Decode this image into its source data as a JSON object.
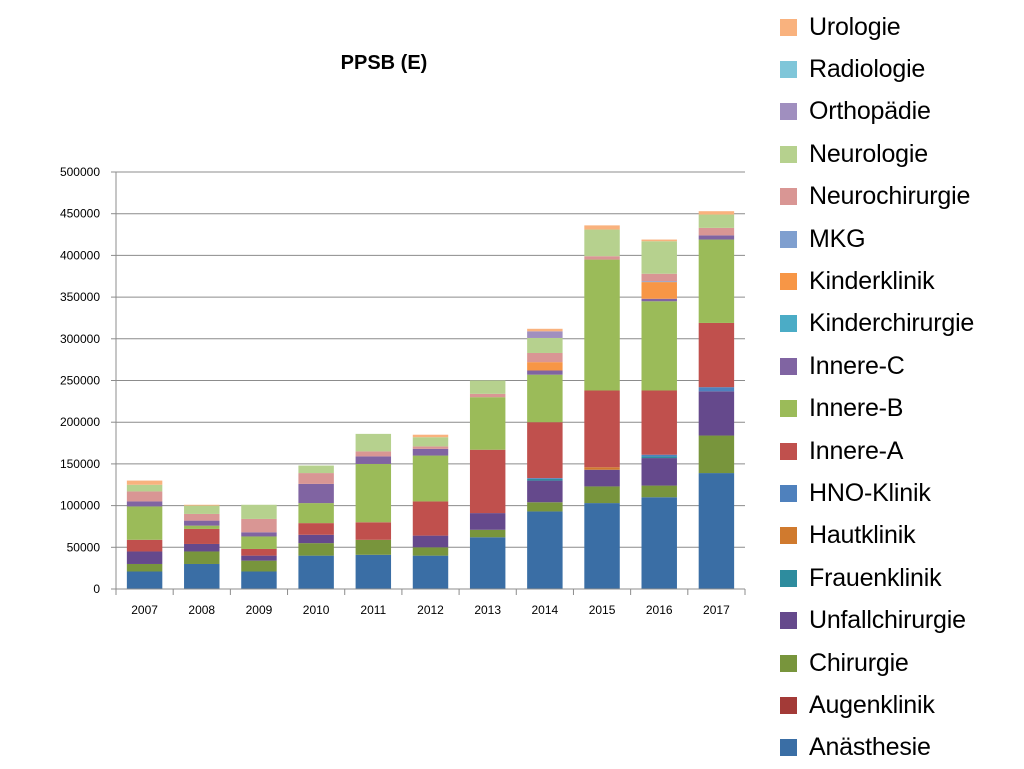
{
  "chart_data": {
    "type": "bar",
    "stacked": true,
    "title": "PPSB (E)",
    "xlabel": "",
    "ylabel": "",
    "ylim": [
      0,
      500000
    ],
    "yticks": [
      "0",
      "50000",
      "100000",
      "150000",
      "200000",
      "250000",
      "300000",
      "350000",
      "400000",
      "450000",
      "500000"
    ],
    "grid": true,
    "legend_position": "right",
    "categories": [
      "2007",
      "2008",
      "2009",
      "2010",
      "2011",
      "2012",
      "2013",
      "2014",
      "2015",
      "2016",
      "2017"
    ],
    "series": [
      {
        "name": "Anästhesie",
        "color": "#3A6EA5",
        "values": [
          21000,
          30000,
          21000,
          40000,
          41000,
          40000,
          62000,
          93000,
          103000,
          110000,
          139000
        ]
      },
      {
        "name": "Augenklinik",
        "color": "#A33A37",
        "values": [
          0,
          0,
          0,
          0,
          0,
          0,
          0,
          0,
          0,
          0,
          0
        ]
      },
      {
        "name": "Chirurgie",
        "color": "#78953C",
        "values": [
          9000,
          15000,
          13000,
          15000,
          18000,
          10000,
          9000,
          11000,
          20000,
          14000,
          45000
        ]
      },
      {
        "name": "Unfallchirurgie",
        "color": "#65498C",
        "values": [
          15000,
          9000,
          6000,
          10000,
          0,
          14000,
          20000,
          26000,
          20000,
          33000,
          53000
        ]
      },
      {
        "name": "Frauenklinik",
        "color": "#2E8C9E",
        "values": [
          0,
          0,
          0,
          0,
          0,
          0,
          0,
          2000,
          0,
          2000,
          0
        ]
      },
      {
        "name": "Hautklinik",
        "color": "#D07A2E",
        "values": [
          0,
          0,
          0,
          0,
          0,
          0,
          0,
          0,
          3000,
          0,
          0
        ]
      },
      {
        "name": "HNO-Klinik",
        "color": "#4F81BD",
        "values": [
          0,
          0,
          0,
          0,
          0,
          0,
          0,
          1000,
          0,
          2000,
          5000
        ]
      },
      {
        "name": "Innere-A",
        "color": "#C0504D",
        "values": [
          14000,
          18000,
          8000,
          14000,
          21000,
          41000,
          76000,
          67000,
          92000,
          77000,
          77000
        ]
      },
      {
        "name": "Innere-B",
        "color": "#9BBB59",
        "values": [
          40000,
          4000,
          15000,
          24000,
          70000,
          55000,
          63000,
          57000,
          157000,
          107000,
          100000
        ]
      },
      {
        "name": "Innere-C",
        "color": "#8064A2",
        "values": [
          6000,
          6000,
          5000,
          23000,
          9000,
          8000,
          0,
          5000,
          0,
          3000,
          5000
        ]
      },
      {
        "name": "Kinderchirurgie",
        "color": "#4BACC6",
        "values": [
          0,
          0,
          0,
          0,
          0,
          0,
          0,
          0,
          0,
          0,
          0
        ]
      },
      {
        "name": "Kinderklinik",
        "color": "#F79646",
        "values": [
          0,
          0,
          0,
          0,
          0,
          0,
          0,
          10000,
          0,
          20000,
          0
        ]
      },
      {
        "name": "MKG",
        "color": "#7F9FCF",
        "values": [
          0,
          0,
          0,
          0,
          0,
          0,
          0,
          0,
          0,
          1000,
          0
        ]
      },
      {
        "name": "Neurochirurgie",
        "color": "#D99694",
        "values": [
          12000,
          8000,
          16000,
          13000,
          6000,
          3000,
          4000,
          11000,
          4000,
          9000,
          9000
        ]
      },
      {
        "name": "Neurologie",
        "color": "#B6D18E",
        "values": [
          8000,
          10000,
          17000,
          9000,
          21000,
          11000,
          16000,
          18000,
          32000,
          39000,
          16000
        ]
      },
      {
        "name": "Orthopädie",
        "color": "#A08FBF",
        "values": [
          0,
          0,
          0,
          0,
          0,
          0,
          0,
          8000,
          0,
          0,
          0
        ]
      },
      {
        "name": "Radiologie",
        "color": "#7FC6D9",
        "values": [
          0,
          0,
          0,
          0,
          0,
          0,
          0,
          0,
          0,
          0,
          0
        ]
      },
      {
        "name": "Urologie",
        "color": "#F9B27E",
        "values": [
          5000,
          1000,
          0,
          0,
          0,
          3000,
          0,
          3000,
          5000,
          2000,
          4000
        ]
      }
    ]
  }
}
